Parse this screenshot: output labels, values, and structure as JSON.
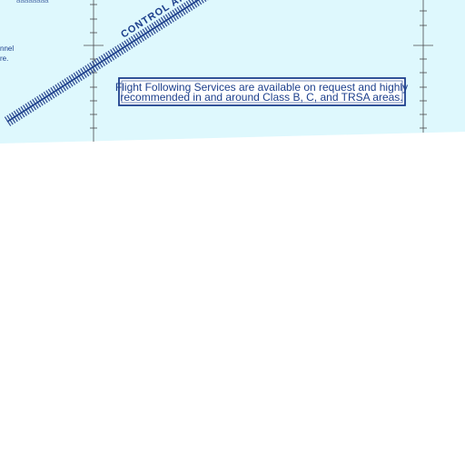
{
  "map": {
    "boundary_label": "CONTROL AR",
    "notice": {
      "line1": "Flight Following Services are available on request and highly",
      "line2": "recommended in and around Class B, C, and TRSA areas."
    },
    "partial_text": {
      "top_left_fragment": "aaaaaaaa",
      "left_line1": "nnel",
      "left_line2": "re."
    },
    "colors": {
      "chart_background": "#def8fd",
      "paper": "#ffffff",
      "ink": "#1c3f8c",
      "grid": "#333333"
    }
  }
}
